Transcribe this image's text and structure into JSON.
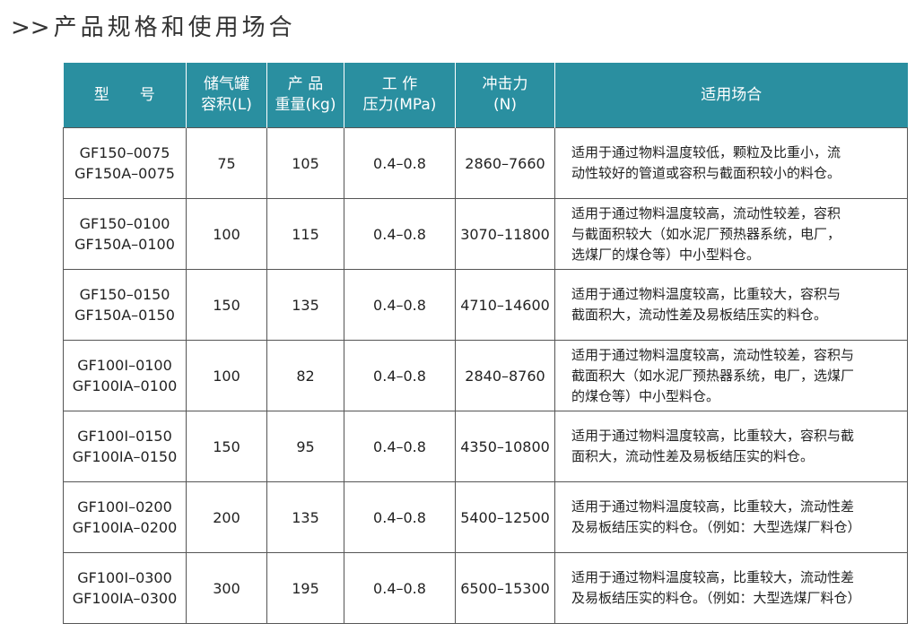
{
  "header": {
    "prefix": ">>",
    "title": "产品规格和使用场合"
  },
  "table": {
    "columns": [
      [
        "型　　号"
      ],
      [
        "储气罐",
        "容积(L)"
      ],
      [
        "产 品",
        "重量(kg)"
      ],
      [
        "工 作",
        "压力(MPa)"
      ],
      [
        "冲击力",
        "(N)"
      ],
      [
        "适用场合"
      ]
    ],
    "rows": [
      [
        [
          "GF150–0075",
          "GF150A–0075"
        ],
        [
          "75"
        ],
        [
          "105"
        ],
        [
          "0.4–0.8"
        ],
        [
          "2860–7660"
        ],
        [
          "适用于通过物料温度较低，颗粒及比重小，流",
          "动性较好的管道或容积与截面积较小的料仓。"
        ]
      ],
      [
        [
          "GF150–0100",
          "GF150A–0100"
        ],
        [
          "100"
        ],
        [
          "115"
        ],
        [
          "0.4–0.8"
        ],
        [
          "3070–11800"
        ],
        [
          "适用于通过物料温度较高，流动性较差，容积",
          "与截面积较大（如水泥厂预热器系统，电厂，",
          "选煤厂的煤仓等）中小型料仓。"
        ]
      ],
      [
        [
          "GF150–0150",
          "GF150A–0150"
        ],
        [
          "150"
        ],
        [
          "135"
        ],
        [
          "0.4–0.8"
        ],
        [
          "4710–14600"
        ],
        [
          "适用于通过物料温度较高，比重较大，容积与",
          "截面积大，流动性差及易板结压实的料仓。"
        ]
      ],
      [
        [
          "GF100I–0100",
          "GF100IA–0100"
        ],
        [
          "100"
        ],
        [
          "82"
        ],
        [
          "0.4–0.8"
        ],
        [
          "2840–8760"
        ],
        [
          "适用于通过物料温度较高，流动性较差，容积与",
          "截面积大（如水泥厂预热器系统，电厂，选煤厂",
          "的煤仓等）中小型料仓。"
        ]
      ],
      [
        [
          "GF100I–0150",
          "GF100IA–0150"
        ],
        [
          "150"
        ],
        [
          "95"
        ],
        [
          "0.4–0.8"
        ],
        [
          "4350–10800"
        ],
        [
          "适用于通过物料温度较高，比重较大，容积与截",
          "面积大，流动性差及易板结压实的料仓。"
        ]
      ],
      [
        [
          "GF100I–0200",
          "GF100IA–0200"
        ],
        [
          "200"
        ],
        [
          "135"
        ],
        [
          "0.4–0.8"
        ],
        [
          "5400–12500"
        ],
        [
          "适用于通过物料温度较高，比重较大，流动性差",
          "及易板结压实的料仓。（例如：大型选煤厂料仓）"
        ]
      ],
      [
        [
          "GF100I–0300",
          "GF100IA–0300"
        ],
        [
          "300"
        ],
        [
          "195"
        ],
        [
          "0.4–0.8"
        ],
        [
          "6500–15300"
        ],
        [
          "适用于通过物料温度较高，比重较大，流动性差",
          "及易板结压实的料仓。（例如：大型选煤厂料仓）"
        ]
      ]
    ]
  }
}
